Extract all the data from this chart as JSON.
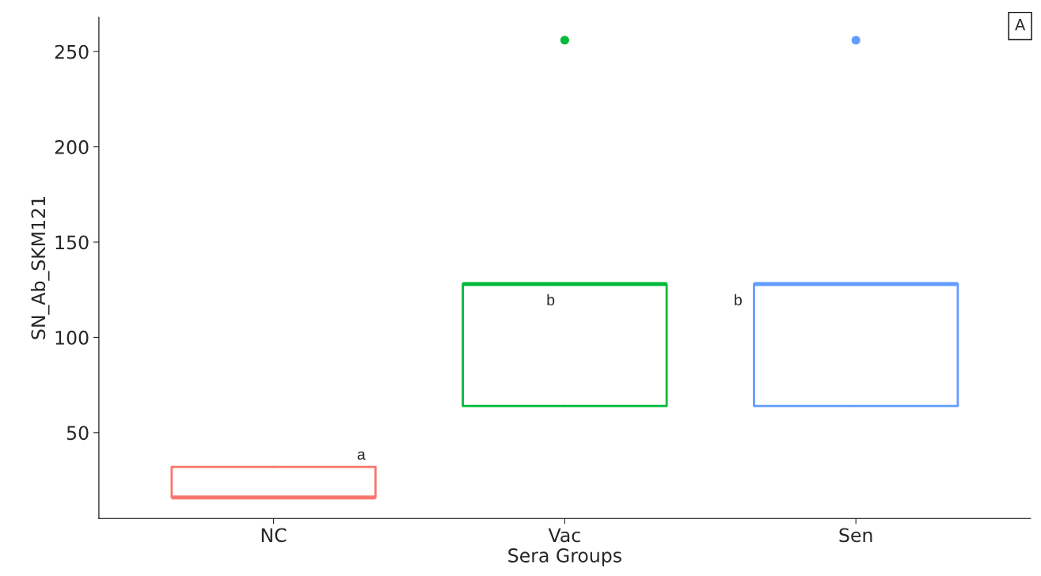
{
  "chart_data": {
    "type": "box",
    "xlabel": "Sera Groups",
    "ylabel": "SN_Ab_SKM121",
    "categories": [
      "NC",
      "Vac",
      "Sen"
    ],
    "boxes": [
      {
        "low": 16,
        "q1": 16,
        "median": 16,
        "q3": 32,
        "high": 32
      },
      {
        "low": 64,
        "q1": 64,
        "median": 128,
        "q3": 128,
        "high": 128,
        "outliers": [
          256
        ]
      },
      {
        "low": 64,
        "q1": 64,
        "median": 128,
        "q3": 128,
        "high": 128,
        "outliers": [
          256
        ]
      }
    ],
    "colors": [
      "#f8766d",
      "#00ba38",
      "#619cff"
    ],
    "ylim": [
      5,
      268
    ],
    "yticks": [
      50,
      100,
      150,
      200,
      250
    ],
    "grid": false,
    "annotations": [
      "a",
      "b",
      "b",
      "A"
    ]
  }
}
